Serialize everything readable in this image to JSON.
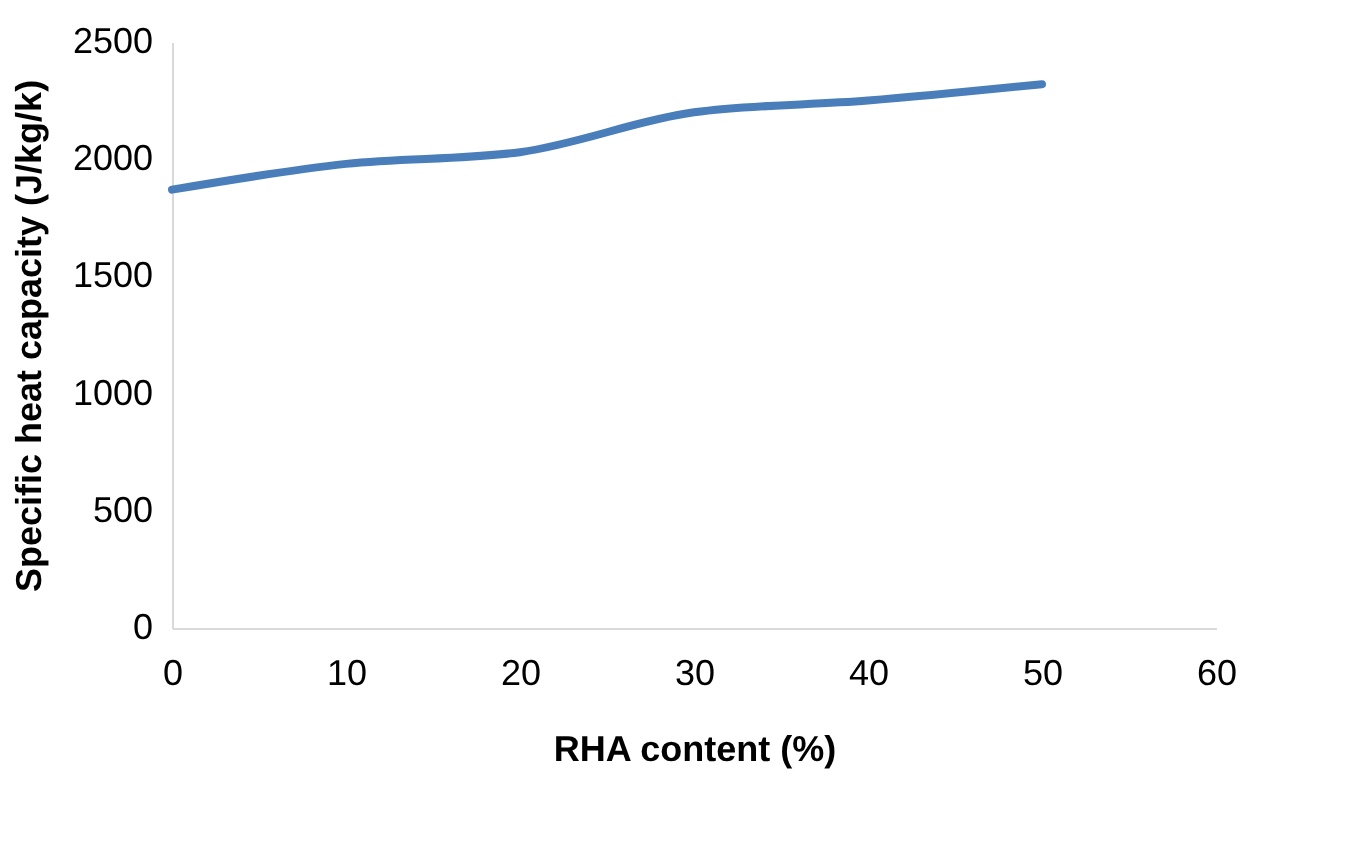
{
  "chart_data": {
    "type": "line",
    "xlabel": "RHA content (%)",
    "ylabel": "Specific heat capacity (J/kg/k)",
    "x": [
      0,
      10,
      20,
      30,
      40,
      50
    ],
    "series": [
      {
        "color": "#4a7ebb",
        "values": [
          1870,
          1980,
          2030,
          2200,
          2250,
          2320
        ]
      }
    ],
    "xlim": [
      0,
      60
    ],
    "xticks": [
      0,
      10,
      20,
      30,
      40,
      50,
      60
    ],
    "ylim": [
      0,
      2500
    ],
    "yticks": [
      0,
      500,
      1000,
      1500,
      2000,
      2500
    ],
    "grid": false,
    "marker": "none",
    "line_style": "solid"
  }
}
